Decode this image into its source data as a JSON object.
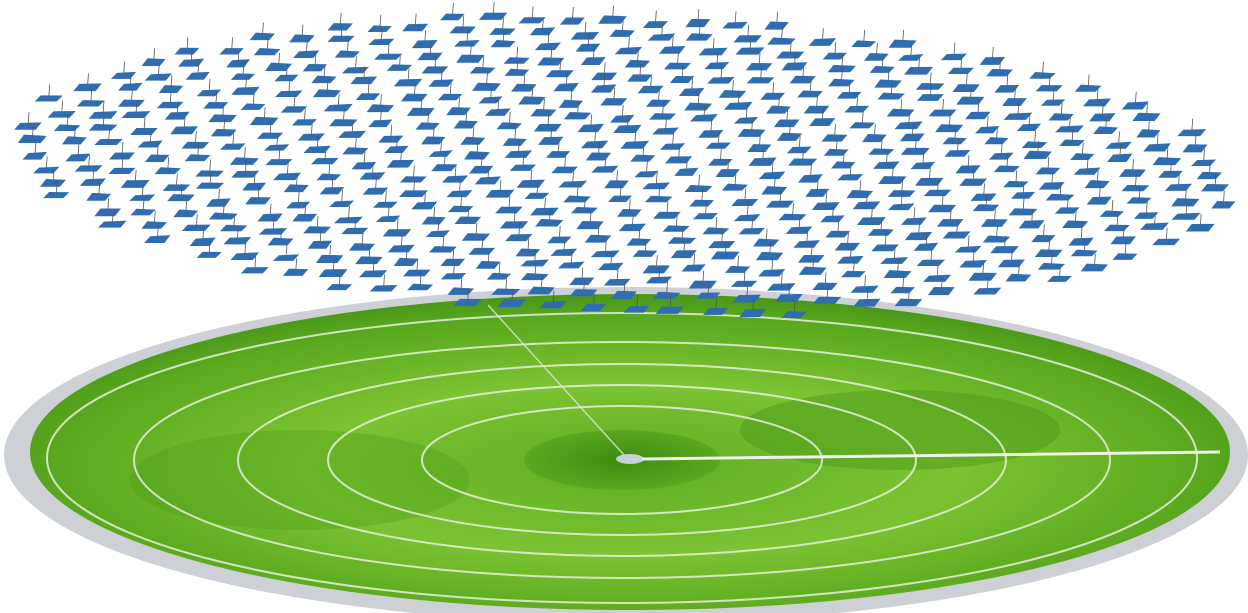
{
  "scene": {
    "description_kind": "photogrammetry-reconstruction",
    "ground": {
      "kind": "cricket-oval",
      "grass_color_light": "#6fbe2a",
      "grass_color_dark": "#3f8d12",
      "line_color": "#e9efe0",
      "border_color": "#c9cdd2",
      "pitch_color": "#c8d0d8"
    },
    "cameras": {
      "kind": "drone-camera-frames",
      "frame_color": "#2f6db0",
      "pole_color": "#555555",
      "approx_count": 560,
      "layout": "elliptical-grid-above-field"
    }
  }
}
